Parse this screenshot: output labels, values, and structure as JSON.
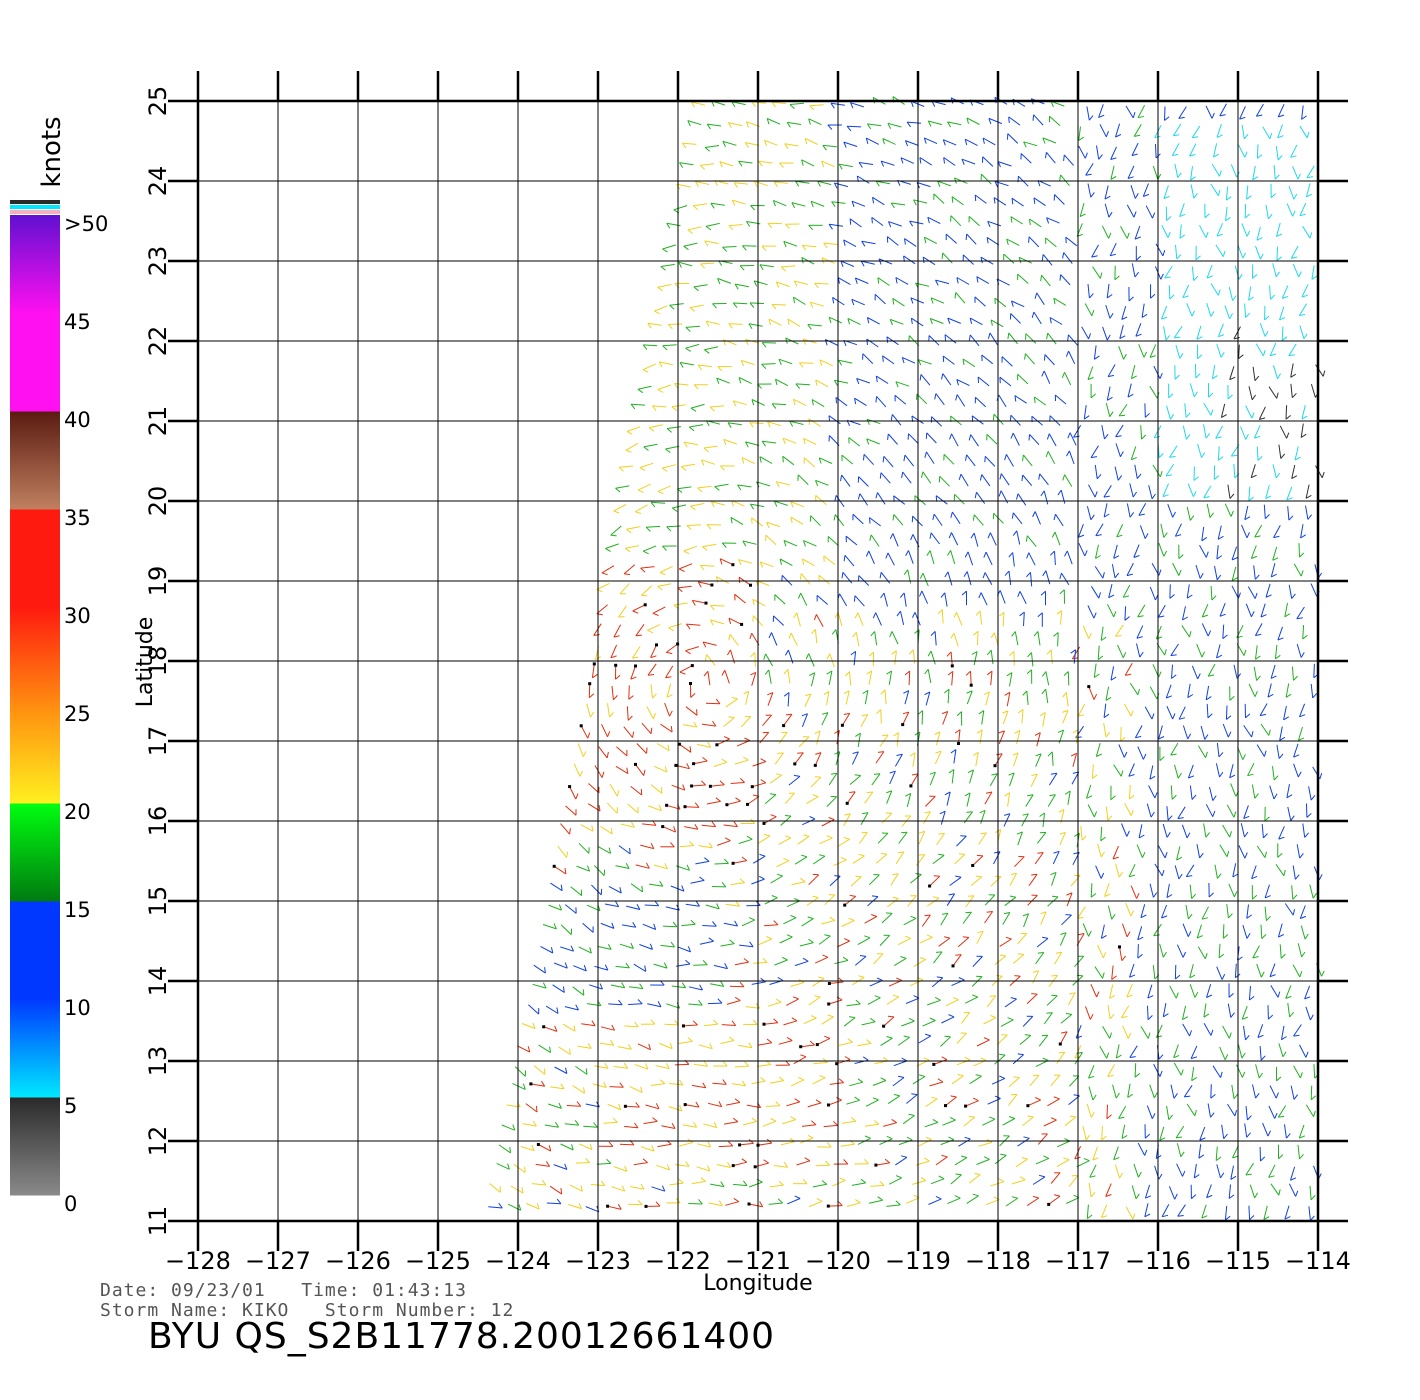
{
  "map": {
    "xlabel": "Longitude",
    "ylabel": "Latitude",
    "lon_ticks": [
      "−128",
      "−127",
      "−126",
      "−125",
      "−124",
      "−123",
      "−122",
      "−121",
      "−120",
      "−119",
      "−118",
      "−117",
      "−116",
      "−115",
      "−114"
    ],
    "lat_ticks": [
      "11",
      "12",
      "13",
      "14",
      "15",
      "16",
      "17",
      "18",
      "19",
      "20",
      "21",
      "22",
      "23",
      "24",
      "25"
    ],
    "lon_range": [
      -128,
      -114
    ],
    "lat_range": [
      11,
      25
    ]
  },
  "colorbar": {
    "unit_label": "knots",
    "labels": [
      ">50",
      "45",
      "40",
      "35",
      "30",
      "25",
      "20",
      "15",
      "10",
      "5",
      "0"
    ],
    "colors": {
      "gray": "#8a8a8a",
      "black": "#2a2a2a",
      "cyan": "#00e8ff",
      "blue": "#0038ff",
      "darkgreen": "#007a10",
      "green": "#00ff10",
      "yellow": "#fff020",
      "orange": "#ff8c10",
      "red": "#ff1a10",
      "brown": "#5a1a10",
      "tan": "#c08060",
      "magenta": "#ff10f0",
      "purple": "#6010d0"
    }
  },
  "wind_colors": {
    "calm": "#303030",
    "light": "#20d8e8",
    "moderate": "#1040e0",
    "fresh": "#20b020",
    "strong": "#f0d020",
    "gale": "#e03010"
  },
  "footer": {
    "date_line": "Date: 09/23/01   Time: 01:43:13",
    "storm_line": "Storm Name: KIKO   Storm Number: 12",
    "title": "BYU QS_S2B11778.20012661400"
  }
}
